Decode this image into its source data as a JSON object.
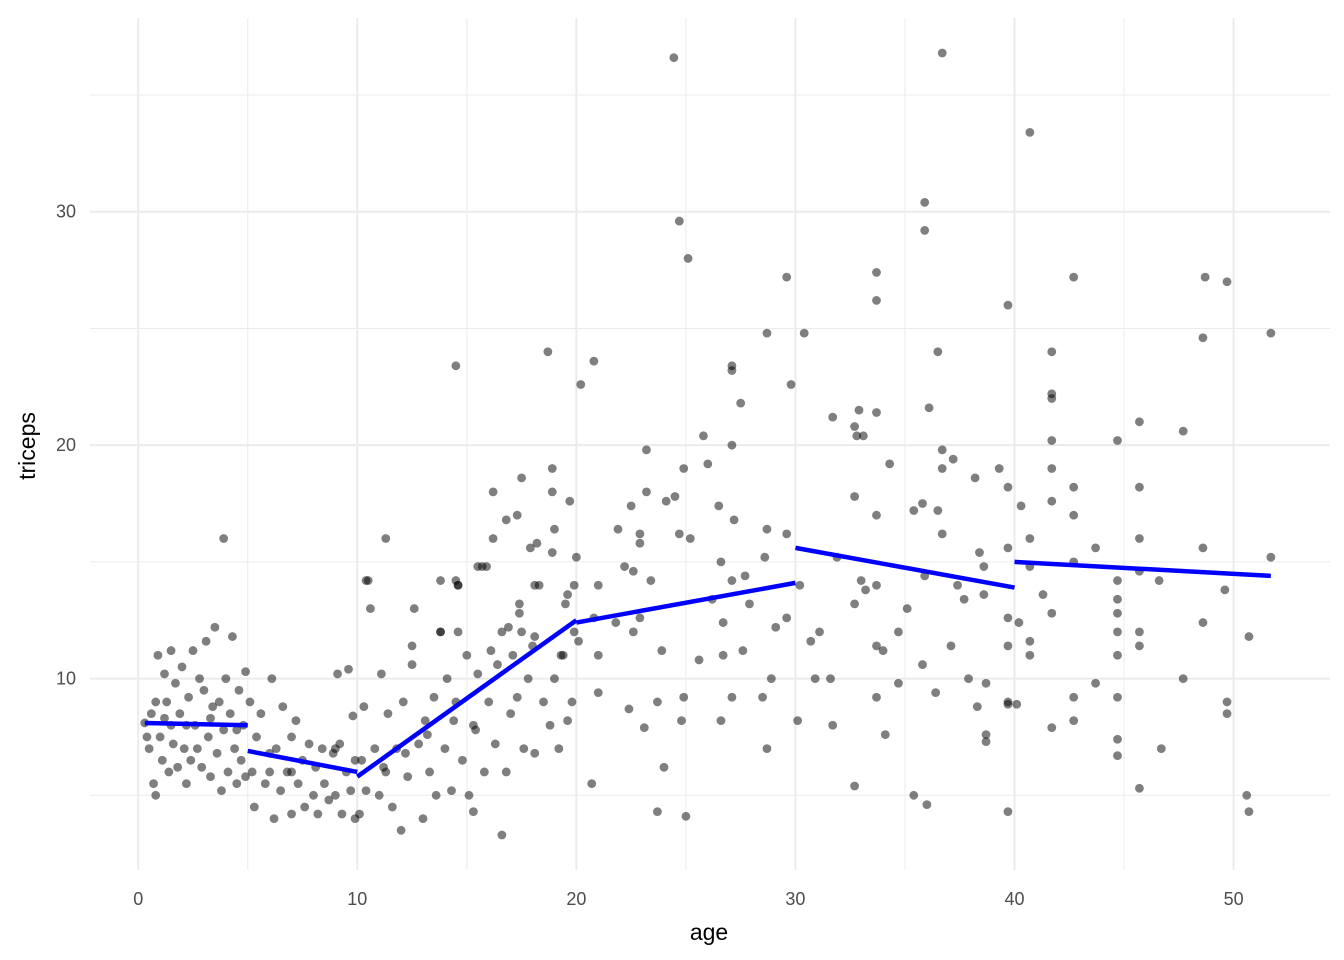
{
  "chart_data": {
    "type": "scatter",
    "title": "",
    "xlabel": "age",
    "ylabel": "triceps",
    "xlim": [
      -2.2,
      54.4
    ],
    "ylim": [
      1.8,
      38.3
    ],
    "x_ticks": [
      0,
      10,
      20,
      30,
      40,
      50
    ],
    "y_ticks": [
      10,
      20,
      30
    ],
    "x_tick_labels": [
      "0",
      "10",
      "20",
      "30",
      "40",
      "50"
    ],
    "y_tick_labels": [
      "10",
      "20",
      "30"
    ],
    "grid": true,
    "point_color": "#000000",
    "point_opacity": 0.5,
    "line_color": "#0000ff",
    "grid_color": "#ebebeb",
    "points": [
      [
        24.45,
        36.6
      ],
      [
        36.7,
        36.8
      ],
      [
        40.7,
        33.4
      ],
      [
        24.7,
        29.6
      ],
      [
        25.1,
        28.0
      ],
      [
        35.9,
        30.4
      ],
      [
        35.9,
        29.2
      ],
      [
        29.6,
        27.2
      ],
      [
        33.7,
        27.4
      ],
      [
        33.7,
        26.2
      ],
      [
        39.7,
        26.0
      ],
      [
        42.7,
        27.2
      ],
      [
        48.7,
        27.2
      ],
      [
        49.7,
        27.0
      ],
      [
        48.6,
        24.6
      ],
      [
        51.7,
        24.8
      ],
      [
        28.7,
        24.8
      ],
      [
        30.4,
        24.8
      ],
      [
        18.7,
        24.0
      ],
      [
        36.5,
        24.0
      ],
      [
        41.7,
        24.0
      ],
      [
        14.5,
        23.4
      ],
      [
        20.8,
        23.6
      ],
      [
        20.2,
        22.6
      ],
      [
        27.1,
        23.4
      ],
      [
        27.1,
        23.2
      ],
      [
        29.8,
        22.6
      ],
      [
        27.5,
        21.8
      ],
      [
        41.7,
        22.2
      ],
      [
        41.7,
        22.0
      ],
      [
        31.7,
        21.2
      ],
      [
        32.9,
        21.5
      ],
      [
        33.7,
        21.4
      ],
      [
        36.1,
        21.6
      ],
      [
        45.7,
        21.0
      ],
      [
        32.7,
        20.8
      ],
      [
        32.8,
        20.4
      ],
      [
        33.1,
        20.4
      ],
      [
        23.2,
        19.8
      ],
      [
        25.8,
        20.4
      ],
      [
        27.1,
        20.0
      ],
      [
        41.7,
        20.2
      ],
      [
        44.7,
        20.2
      ],
      [
        47.7,
        20.6
      ],
      [
        36.7,
        19.8
      ],
      [
        37.2,
        19.4
      ],
      [
        34.3,
        19.2
      ],
      [
        26.0,
        19.2
      ],
      [
        18.9,
        19.0
      ],
      [
        24.9,
        19.0
      ],
      [
        36.7,
        19.0
      ],
      [
        39.3,
        19.0
      ],
      [
        41.7,
        19.0
      ],
      [
        17.5,
        18.6
      ],
      [
        38.2,
        18.6
      ],
      [
        39.7,
        18.2
      ],
      [
        42.7,
        18.2
      ],
      [
        45.7,
        18.2
      ],
      [
        16.2,
        18.0
      ],
      [
        18.9,
        18.0
      ],
      [
        23.2,
        18.0
      ],
      [
        24.5,
        17.8
      ],
      [
        24.1,
        17.6
      ],
      [
        32.7,
        17.8
      ],
      [
        19.7,
        17.6
      ],
      [
        22.5,
        17.4
      ],
      [
        26.5,
        17.4
      ],
      [
        35.8,
        17.5
      ],
      [
        35.4,
        17.2
      ],
      [
        36.5,
        17.2
      ],
      [
        40.3,
        17.4
      ],
      [
        41.7,
        17.6
      ],
      [
        17.3,
        17.0
      ],
      [
        16.8,
        16.8
      ],
      [
        27.2,
        16.8
      ],
      [
        33.7,
        17.0
      ],
      [
        42.7,
        17.0
      ],
      [
        19.0,
        16.4
      ],
      [
        21.9,
        16.4
      ],
      [
        28.7,
        16.4
      ],
      [
        22.9,
        16.2
      ],
      [
        24.7,
        16.2
      ],
      [
        3.9,
        16.0
      ],
      [
        11.3,
        16.0
      ],
      [
        16.2,
        16.0
      ],
      [
        25.2,
        16.0
      ],
      [
        36.7,
        16.2
      ],
      [
        40.7,
        16.0
      ],
      [
        45.7,
        16.0
      ],
      [
        29.6,
        16.2
      ],
      [
        22.9,
        15.8
      ],
      [
        17.9,
        15.6
      ],
      [
        18.2,
        15.8
      ],
      [
        39.7,
        15.6
      ],
      [
        43.7,
        15.6
      ],
      [
        48.6,
        15.6
      ],
      [
        18.9,
        15.4
      ],
      [
        26.6,
        15.0
      ],
      [
        28.6,
        15.2
      ],
      [
        31.9,
        15.2
      ],
      [
        38.4,
        15.4
      ],
      [
        42.7,
        15.0
      ],
      [
        51.7,
        15.2
      ],
      [
        20.0,
        15.2
      ],
      [
        15.5,
        14.8
      ],
      [
        15.9,
        14.8
      ],
      [
        22.2,
        14.8
      ],
      [
        22.6,
        14.6
      ],
      [
        38.6,
        14.8
      ],
      [
        40.7,
        14.8
      ],
      [
        45.7,
        14.6
      ],
      [
        35.9,
        14.4
      ],
      [
        27.7,
        14.4
      ],
      [
        10.4,
        14.2
      ],
      [
        13.8,
        14.2
      ],
      [
        14.5,
        14.2
      ],
      [
        27.1,
        14.2
      ],
      [
        33.0,
        14.2
      ],
      [
        44.7,
        14.2
      ],
      [
        46.6,
        14.2
      ],
      [
        14.6,
        14.0
      ],
      [
        19.9,
        14.0
      ],
      [
        21.0,
        14.0
      ],
      [
        30.2,
        14.0
      ],
      [
        33.7,
        14.0
      ],
      [
        37.4,
        14.0
      ],
      [
        18.1,
        14.0
      ],
      [
        23.4,
        14.2
      ],
      [
        33.2,
        13.8
      ],
      [
        38.6,
        13.6
      ],
      [
        41.3,
        13.6
      ],
      [
        49.6,
        13.8
      ],
      [
        44.7,
        13.4
      ],
      [
        19.6,
        13.6
      ],
      [
        26.2,
        13.4
      ],
      [
        27.9,
        13.2
      ],
      [
        32.7,
        13.2
      ],
      [
        35.1,
        13.0
      ],
      [
        37.7,
        13.4
      ],
      [
        17.4,
        13.2
      ],
      [
        17.4,
        12.8
      ],
      [
        19.5,
        13.2
      ],
      [
        41.7,
        12.8
      ],
      [
        44.7,
        12.8
      ],
      [
        29.6,
        12.6
      ],
      [
        22.9,
        12.6
      ],
      [
        20.8,
        12.6
      ],
      [
        21.8,
        12.4
      ],
      [
        26.7,
        12.4
      ],
      [
        39.7,
        12.6
      ],
      [
        48.6,
        12.4
      ],
      [
        40.2,
        12.4
      ],
      [
        16.9,
        12.2
      ],
      [
        29.1,
        12.2
      ],
      [
        13.8,
        12.0
      ],
      [
        14.6,
        12.0
      ],
      [
        22.6,
        12.0
      ],
      [
        31.1,
        12.0
      ],
      [
        34.7,
        12.0
      ],
      [
        44.7,
        12.0
      ],
      [
        45.7,
        12.0
      ],
      [
        50.7,
        11.8
      ],
      [
        18.1,
        11.8
      ],
      [
        12.5,
        11.4
      ],
      [
        20.1,
        11.6
      ],
      [
        30.7,
        11.6
      ],
      [
        33.7,
        11.4
      ],
      [
        37.1,
        11.4
      ],
      [
        45.7,
        11.4
      ],
      [
        39.7,
        11.4
      ],
      [
        40.7,
        11.6
      ],
      [
        19.3,
        11.0
      ],
      [
        23.9,
        11.2
      ],
      [
        34.0,
        11.2
      ],
      [
        27.6,
        11.2
      ],
      [
        44.7,
        11.0
      ],
      [
        40.7,
        11.0
      ],
      [
        21.0,
        11.0
      ],
      [
        25.6,
        10.8
      ],
      [
        35.8,
        10.6
      ],
      [
        26.7,
        11.0
      ],
      [
        28.9,
        10.0
      ],
      [
        30.9,
        10.0
      ],
      [
        31.6,
        10.0
      ],
      [
        37.9,
        10.0
      ],
      [
        47.7,
        10.0
      ],
      [
        34.7,
        9.8
      ],
      [
        38.7,
        9.8
      ],
      [
        43.7,
        9.8
      ],
      [
        21.0,
        9.4
      ],
      [
        33.7,
        9.2
      ],
      [
        36.4,
        9.4
      ],
      [
        42.7,
        9.2
      ],
      [
        44.7,
        9.2
      ],
      [
        39.7,
        9.0
      ],
      [
        49.7,
        9.0
      ],
      [
        27.1,
        9.2
      ],
      [
        28.5,
        9.2
      ],
      [
        24.9,
        9.2
      ],
      [
        23.7,
        9.0
      ],
      [
        39.7,
        8.9
      ],
      [
        40.1,
        8.9
      ],
      [
        38.3,
        8.8
      ],
      [
        22.4,
        8.7
      ],
      [
        24.8,
        8.2
      ],
      [
        26.6,
        8.2
      ],
      [
        42.7,
        8.2
      ],
      [
        49.7,
        8.5
      ],
      [
        30.1,
        8.2
      ],
      [
        31.7,
        8.0
      ],
      [
        23.1,
        7.9
      ],
      [
        41.7,
        7.9
      ],
      [
        34.1,
        7.6
      ],
      [
        38.7,
        7.6
      ],
      [
        44.7,
        7.4
      ],
      [
        38.7,
        7.3
      ],
      [
        46.7,
        7.0
      ],
      [
        28.7,
        7.0
      ],
      [
        44.7,
        6.7
      ],
      [
        24.0,
        6.2
      ],
      [
        20.7,
        5.5
      ],
      [
        32.7,
        5.4
      ],
      [
        45.7,
        5.3
      ],
      [
        35.4,
        5.0
      ],
      [
        50.6,
        5.0
      ],
      [
        36.0,
        4.6
      ],
      [
        23.7,
        4.3
      ],
      [
        25.0,
        4.1
      ],
      [
        39.7,
        4.3
      ],
      [
        50.7,
        4.3
      ],
      [
        16.6,
        3.3
      ],
      [
        15.3,
        4.3
      ],
      [
        0.3,
        8.1
      ],
      [
        0.5,
        7.0
      ],
      [
        0.6,
        8.5
      ],
      [
        0.7,
        5.5
      ],
      [
        0.8,
        5.0
      ],
      [
        0.8,
        9.0
      ],
      [
        0.9,
        11.0
      ],
      [
        1.0,
        7.5
      ],
      [
        1.1,
        6.5
      ],
      [
        1.2,
        10.2
      ],
      [
        1.3,
        9.0
      ],
      [
        1.4,
        6.0
      ],
      [
        1.5,
        8.0
      ],
      [
        1.5,
        11.2
      ],
      [
        1.6,
        7.2
      ],
      [
        1.7,
        9.8
      ],
      [
        1.8,
        6.2
      ],
      [
        1.9,
        8.5
      ],
      [
        2.0,
        10.5
      ],
      [
        2.1,
        7.0
      ],
      [
        2.2,
        5.5
      ],
      [
        2.3,
        9.2
      ],
      [
        2.4,
        6.5
      ],
      [
        2.5,
        11.2
      ],
      [
        2.6,
        8.0
      ],
      [
        2.7,
        7.0
      ],
      [
        2.8,
        10.0
      ],
      [
        2.9,
        6.2
      ],
      [
        3.0,
        9.5
      ],
      [
        3.1,
        11.6
      ],
      [
        3.2,
        7.5
      ],
      [
        3.3,
        5.8
      ],
      [
        3.4,
        8.8
      ],
      [
        3.5,
        12.2
      ],
      [
        3.6,
        6.8
      ],
      [
        3.7,
        9.0
      ],
      [
        3.8,
        5.2
      ],
      [
        3.9,
        7.8
      ],
      [
        4.0,
        10.0
      ],
      [
        4.1,
        6.0
      ],
      [
        4.2,
        8.5
      ],
      [
        4.3,
        11.8
      ],
      [
        4.4,
        7.0
      ],
      [
        4.5,
        5.5
      ],
      [
        4.6,
        9.5
      ],
      [
        4.7,
        6.5
      ],
      [
        4.8,
        8.0
      ],
      [
        4.9,
        10.3
      ],
      [
        4.9,
        5.8
      ],
      [
        0.4,
        7.5
      ],
      [
        1.2,
        8.3
      ],
      [
        2.2,
        8.0
      ],
      [
        3.3,
        8.3
      ],
      [
        4.5,
        7.8
      ],
      [
        5.1,
        9.0
      ],
      [
        5.2,
        6.0
      ],
      [
        5.3,
        4.5
      ],
      [
        5.4,
        7.5
      ],
      [
        5.6,
        8.5
      ],
      [
        5.8,
        5.5
      ],
      [
        6.0,
        6.8
      ],
      [
        6.1,
        10.0
      ],
      [
        6.2,
        4.0
      ],
      [
        6.3,
        7.0
      ],
      [
        6.5,
        5.2
      ],
      [
        6.6,
        8.8
      ],
      [
        6.8,
        6.0
      ],
      [
        7.0,
        4.2
      ],
      [
        7.0,
        7.5
      ],
      [
        7.2,
        8.2
      ],
      [
        7.3,
        5.5
      ],
      [
        7.5,
        6.5
      ],
      [
        7.6,
        4.5
      ],
      [
        7.8,
        7.2
      ],
      [
        8.0,
        5.0
      ],
      [
        8.1,
        6.2
      ],
      [
        8.2,
        4.2
      ],
      [
        8.4,
        7.0
      ],
      [
        8.5,
        5.5
      ],
      [
        8.7,
        4.8
      ],
      [
        8.9,
        6.8
      ],
      [
        9.0,
        5.0
      ],
      [
        9.1,
        10.2
      ],
      [
        9.2,
        7.2
      ],
      [
        9.3,
        4.2
      ],
      [
        9.5,
        6.0
      ],
      [
        9.6,
        10.4
      ],
      [
        9.7,
        5.2
      ],
      [
        9.8,
        8.4
      ],
      [
        9.9,
        4.0
      ],
      [
        9.9,
        6.5
      ],
      [
        9.0,
        7.0
      ],
      [
        6.0,
        6.0
      ],
      [
        7.0,
        6.0
      ],
      [
        10.1,
        4.2
      ],
      [
        10.2,
        6.5
      ],
      [
        10.3,
        8.8
      ],
      [
        10.4,
        5.2
      ],
      [
        10.5,
        14.2
      ],
      [
        10.6,
        13.0
      ],
      [
        10.8,
        7.0
      ],
      [
        11.0,
        5.0
      ],
      [
        11.1,
        10.2
      ],
      [
        11.3,
        6.0
      ],
      [
        11.4,
        8.5
      ],
      [
        11.6,
        4.5
      ],
      [
        11.8,
        7.0
      ],
      [
        12.0,
        3.5
      ],
      [
        12.1,
        9.0
      ],
      [
        12.3,
        5.8
      ],
      [
        12.5,
        10.6
      ],
      [
        12.6,
        13.0
      ],
      [
        12.8,
        7.2
      ],
      [
        13.0,
        4.0
      ],
      [
        13.1,
        8.2
      ],
      [
        13.3,
        6.0
      ],
      [
        13.5,
        9.2
      ],
      [
        13.6,
        5.0
      ],
      [
        13.8,
        12.0
      ],
      [
        14.0,
        7.0
      ],
      [
        14.1,
        10.0
      ],
      [
        14.3,
        5.2
      ],
      [
        14.5,
        9.0
      ],
      [
        14.6,
        14.0
      ],
      [
        14.8,
        6.5
      ],
      [
        15.0,
        11.0
      ],
      [
        15.1,
        5.0
      ],
      [
        15.3,
        8.0
      ],
      [
        15.5,
        10.2
      ],
      [
        15.7,
        14.8
      ],
      [
        15.8,
        6.0
      ],
      [
        16.0,
        9.0
      ],
      [
        16.1,
        11.2
      ],
      [
        16.3,
        7.2
      ],
      [
        16.4,
        10.6
      ],
      [
        16.6,
        12.0
      ],
      [
        16.8,
        6.0
      ],
      [
        17.0,
        8.5
      ],
      [
        17.1,
        11.0
      ],
      [
        17.3,
        9.2
      ],
      [
        17.5,
        12.0
      ],
      [
        17.6,
        7.0
      ],
      [
        17.8,
        10.0
      ],
      [
        18.0,
        11.4
      ],
      [
        18.1,
        6.8
      ],
      [
        18.3,
        14.0
      ],
      [
        18.5,
        9.0
      ],
      [
        18.8,
        8.0
      ],
      [
        19.0,
        10.0
      ],
      [
        19.2,
        7.0
      ],
      [
        19.4,
        11.0
      ],
      [
        19.6,
        8.2
      ],
      [
        19.8,
        9.0
      ],
      [
        19.9,
        12.0
      ],
      [
        11.2,
        6.2
      ],
      [
        12.2,
        6.8
      ],
      [
        13.2,
        7.6
      ],
      [
        14.4,
        8.2
      ],
      [
        15.4,
        7.8
      ]
    ],
    "fit_segments": [
      {
        "x": [
          0.3,
          5.0
        ],
        "y": [
          8.1,
          8.0
        ]
      },
      {
        "x": [
          5.0,
          10.0
        ],
        "y": [
          6.9,
          6.0
        ]
      },
      {
        "x": [
          10.0,
          20.0
        ],
        "y": [
          5.8,
          12.5
        ]
      },
      {
        "x": [
          20.0,
          30.0
        ],
        "y": [
          12.4,
          14.1
        ]
      },
      {
        "x": [
          30.0,
          40.0
        ],
        "y": [
          15.6,
          13.9
        ]
      },
      {
        "x": [
          40.0,
          51.7
        ],
        "y": [
          15.0,
          14.4
        ]
      }
    ]
  }
}
